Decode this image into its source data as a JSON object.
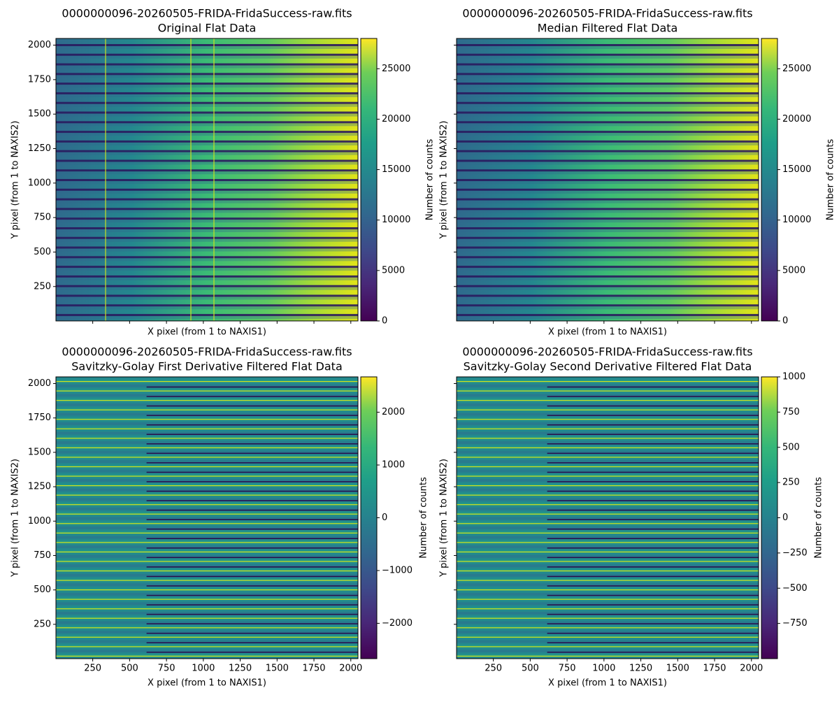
{
  "chart_data": [
    {
      "type": "image",
      "title": "0000000096-20260505-FRIDA-FridaSuccess-raw.fits",
      "subtitle": "Original Flat Data",
      "xlabel": "X pixel (from 1 to NAXIS1)",
      "ylabel": "Y pixel (from 1 to NAXIS2)",
      "xlim": [
        0.5,
        2048.5
      ],
      "ylim": [
        0.5,
        2048.5
      ],
      "xticks": [
        250,
        500,
        750,
        1000,
        1250,
        1500,
        1750,
        2000
      ],
      "yticks": [
        250,
        500,
        750,
        1000,
        1250,
        1500,
        1750,
        2000
      ],
      "show_xtick_labels": false,
      "show_ytick_labels": true,
      "colormap": "viridis",
      "colorbar": {
        "label": "Number of counts",
        "lim": [
          0,
          28000
        ],
        "ticks": [
          0,
          5000,
          10000,
          15000,
          20000,
          25000
        ]
      }
    },
    {
      "type": "image",
      "title": "0000000096-20260505-FRIDA-FridaSuccess-raw.fits",
      "subtitle": "Median Filtered Flat Data",
      "xlabel": "X pixel (from 1 to NAXIS1)",
      "ylabel": "Y pixel (from 1 to NAXIS2)",
      "xlim": [
        0.5,
        2048.5
      ],
      "ylim": [
        0.5,
        2048.5
      ],
      "xticks": [
        250,
        500,
        750,
        1000,
        1250,
        1500,
        1750,
        2000
      ],
      "yticks": [
        250,
        500,
        750,
        1000,
        1250,
        1500,
        1750,
        2000
      ],
      "show_xtick_labels": false,
      "show_ytick_labels": false,
      "colormap": "viridis",
      "colorbar": {
        "label": "Number of counts",
        "lim": [
          0,
          28000
        ],
        "ticks": [
          0,
          5000,
          10000,
          15000,
          20000,
          25000
        ]
      }
    },
    {
      "type": "image",
      "title": "0000000096-20260505-FRIDA-FridaSuccess-raw.fits",
      "subtitle": "Savitzky-Golay First Derivative Filtered Flat Data",
      "xlabel": "X pixel (from 1 to NAXIS1)",
      "ylabel": "Y pixel (from 1 to NAXIS2)",
      "xlim": [
        0.5,
        2048.5
      ],
      "ylim": [
        0.5,
        2048.5
      ],
      "xticks": [
        250,
        500,
        750,
        1000,
        1250,
        1500,
        1750,
        2000
      ],
      "yticks": [
        250,
        500,
        750,
        1000,
        1250,
        1500,
        1750,
        2000
      ],
      "show_xtick_labels": true,
      "show_ytick_labels": true,
      "colormap": "viridis",
      "colorbar": {
        "label": "Number of counts",
        "lim": [
          -2670,
          2670
        ],
        "ticks": [
          {
            "value": -2000,
            "label": "−2000"
          },
          {
            "value": -1000,
            "label": "−1000"
          },
          0,
          1000,
          2000
        ]
      }
    },
    {
      "type": "image",
      "title": "0000000096-20260505-FRIDA-FridaSuccess-raw.fits",
      "subtitle": "Savitzky-Golay Second Derivative Filtered Flat Data",
      "xlabel": "X pixel (from 1 to NAXIS1)",
      "ylabel": "Y pixel (from 1 to NAXIS2)",
      "xlim": [
        0.5,
        2048.5
      ],
      "ylim": [
        0.5,
        2048.5
      ],
      "xticks": [
        250,
        500,
        750,
        1000,
        1250,
        1500,
        1750,
        2000
      ],
      "yticks": [
        250,
        500,
        750,
        1000,
        1250,
        1500,
        1750,
        2000
      ],
      "show_xtick_labels": true,
      "show_ytick_labels": false,
      "colormap": "viridis",
      "colorbar": {
        "label": "Number of counts",
        "lim": [
          -1000,
          1000
        ],
        "ticks": [
          {
            "value": -750,
            "label": "−750"
          },
          {
            "value": -500,
            "label": "−500"
          },
          {
            "value": -250,
            "label": "−250"
          },
          0,
          250,
          500,
          750,
          1000
        ]
      }
    }
  ]
}
